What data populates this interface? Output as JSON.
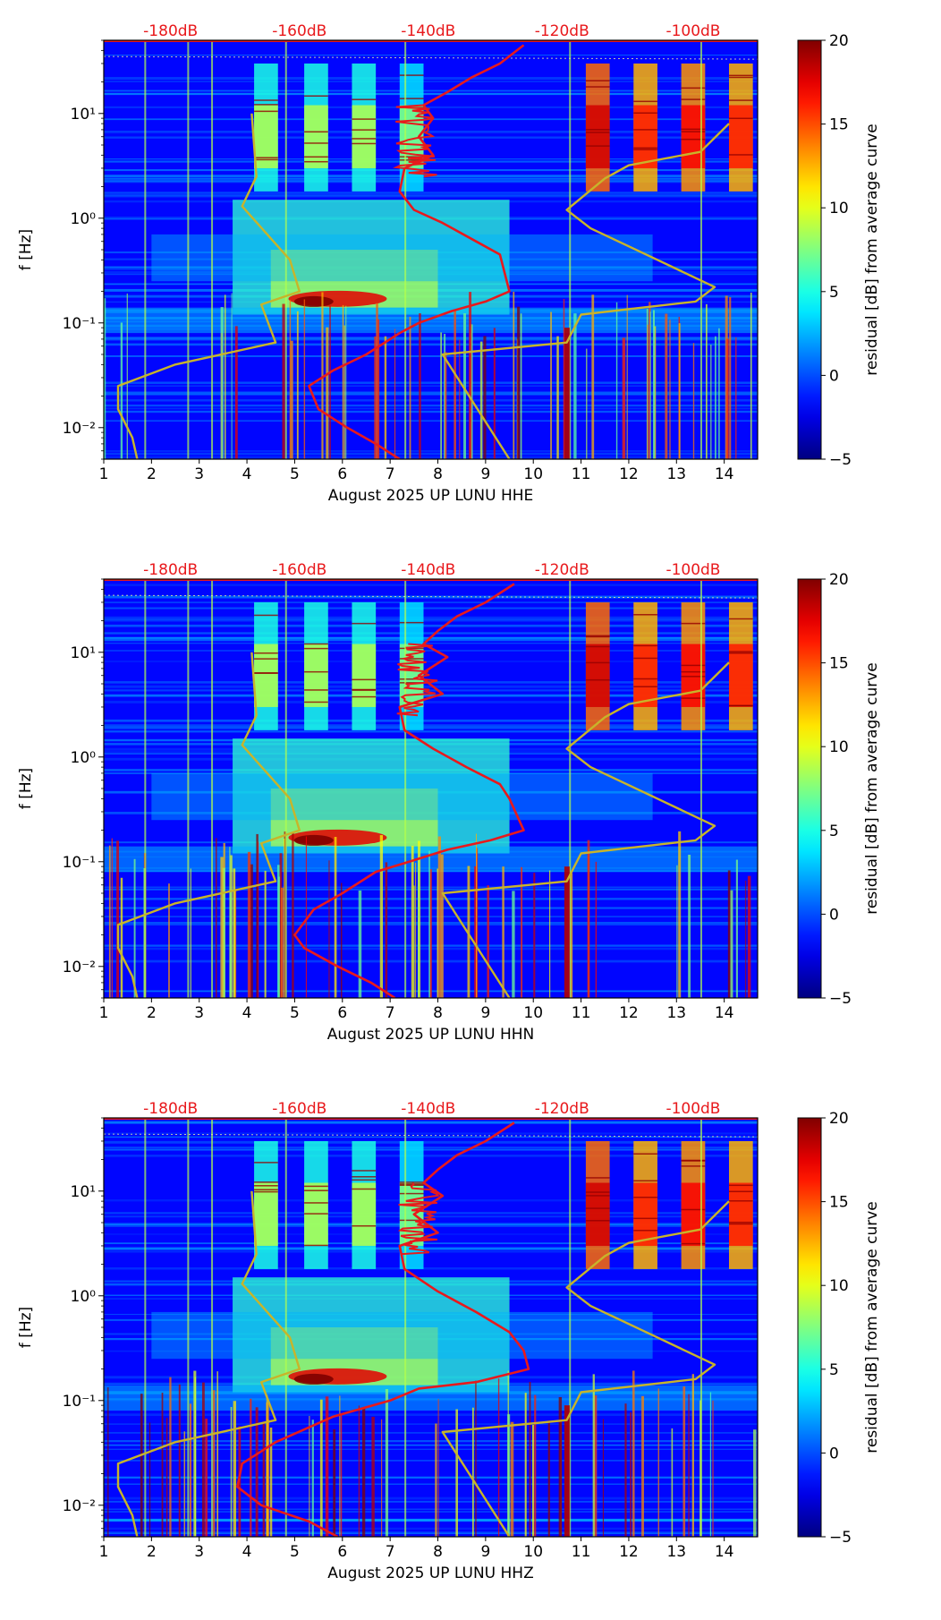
{
  "chart_data": [
    {
      "type": "heatmap",
      "title": "",
      "xlabel": "August 2025 UP LUNU  HHE",
      "ylabel": "f [Hz]",
      "xlim": [
        1,
        14.7
      ],
      "ylim": [
        0.005,
        50
      ],
      "yscale": "log",
      "xticks": [
        1,
        2,
        3,
        4,
        5,
        6,
        7,
        8,
        9,
        10,
        11,
        12,
        13,
        14
      ],
      "yticks": [
        {
          "value": 0.01,
          "label": "10⁻²"
        },
        {
          "value": 0.1,
          "label": "10⁻¹"
        },
        {
          "value": 1,
          "label": "10⁰"
        },
        {
          "value": 10,
          "label": "10¹"
        }
      ],
      "top_ticks": [
        {
          "x": 2.4,
          "label": "-180dB"
        },
        {
          "x": 5.1,
          "label": "-160dB"
        },
        {
          "x": 7.8,
          "label": "-140dB"
        },
        {
          "x": 10.6,
          "label": "-120dB"
        },
        {
          "x": 13.35,
          "label": "-100dB"
        }
      ],
      "colorbar": {
        "label": "residual [dB] from average curve",
        "min": -5,
        "max": 20,
        "ticks": [
          -5,
          0,
          5,
          10,
          15,
          20
        ],
        "colormap": "jet"
      },
      "series": [
        {
          "name": "average PSD curve",
          "color": "#e8191c",
          "x": [
            9.8,
            9.3,
            8.7,
            8.2,
            7.7,
            7.9,
            7.6,
            7.9,
            7.3,
            7.2,
            7.5,
            8.1,
            8.8,
            9.3,
            9.5,
            9.0,
            8.3,
            7.6,
            7.2,
            6.5,
            5.8,
            5.3,
            5.5,
            6.1,
            6.7,
            7.2
          ],
          "y": [
            45,
            30,
            22,
            16,
            12,
            9,
            6,
            4,
            3,
            1.8,
            1.2,
            0.9,
            0.6,
            0.45,
            0.2,
            0.16,
            0.13,
            0.1,
            0.08,
            0.05,
            0.035,
            0.025,
            0.015,
            0.01,
            0.007,
            0.005
          ]
        },
        {
          "name": "noise model low",
          "color": "#c8b42a",
          "x": [
            4.1,
            4.2,
            3.9,
            4.9,
            5.1,
            4.3,
            4.6,
            2.5,
            1.3,
            1.3,
            1.6,
            1.7
          ],
          "y": [
            10,
            2.5,
            1.3,
            0.4,
            0.2,
            0.15,
            0.065,
            0.04,
            0.025,
            0.015,
            0.008,
            0.005
          ]
        },
        {
          "name": "noise model high",
          "color": "#c8b42a",
          "x": [
            14.1,
            13.5,
            12.0,
            11.5,
            10.7,
            11.2,
            12.6,
            13.8,
            13.4,
            11.0,
            10.7,
            8.1,
            9.5
          ],
          "y": [
            8,
            4.3,
            3.2,
            2.4,
            1.2,
            0.8,
            0.4,
            0.22,
            0.16,
            0.12,
            0.065,
            0.05,
            0.005
          ]
        }
      ]
    },
    {
      "type": "heatmap",
      "title": "",
      "xlabel": "August 2025 UP LUNU  HHN",
      "ylabel": "f [Hz]",
      "xlim": [
        1,
        14.7
      ],
      "ylim": [
        0.005,
        50
      ],
      "yscale": "log",
      "xticks": [
        1,
        2,
        3,
        4,
        5,
        6,
        7,
        8,
        9,
        10,
        11,
        12,
        13,
        14
      ],
      "yticks": [
        {
          "value": 0.01,
          "label": "10⁻²"
        },
        {
          "value": 0.1,
          "label": "10⁻¹"
        },
        {
          "value": 1,
          "label": "10⁰"
        },
        {
          "value": 10,
          "label": "10¹"
        }
      ],
      "top_ticks": [
        {
          "x": 2.4,
          "label": "-180dB"
        },
        {
          "x": 5.1,
          "label": "-160dB"
        },
        {
          "x": 7.8,
          "label": "-140dB"
        },
        {
          "x": 10.6,
          "label": "-120dB"
        },
        {
          "x": 13.35,
          "label": "-100dB"
        }
      ],
      "colorbar": {
        "label": "residual [dB] from average curve",
        "min": -5,
        "max": 20,
        "ticks": [
          -5,
          0,
          5,
          10,
          15,
          20
        ],
        "colormap": "jet"
      },
      "series": [
        {
          "name": "average PSD curve",
          "color": "#e8191c",
          "x": [
            9.6,
            9.0,
            8.4,
            8.0,
            7.7,
            8.2,
            7.6,
            8.1,
            7.2,
            7.3,
            7.9,
            8.6,
            9.3,
            9.5,
            9.8,
            9.1,
            8.2,
            7.4,
            6.7,
            6.0,
            5.4,
            5.0,
            5.2,
            5.9,
            6.6,
            7.1
          ],
          "y": [
            45,
            30,
            22,
            16,
            12,
            9,
            6,
            4,
            3,
            1.8,
            1.2,
            0.8,
            0.55,
            0.4,
            0.2,
            0.16,
            0.13,
            0.1,
            0.08,
            0.05,
            0.035,
            0.02,
            0.015,
            0.01,
            0.007,
            0.005
          ]
        },
        {
          "name": "noise model low",
          "color": "#c8b42a",
          "x": [
            4.1,
            4.2,
            3.9,
            4.9,
            5.1,
            4.3,
            4.6,
            2.5,
            1.3,
            1.3,
            1.6,
            1.7
          ],
          "y": [
            10,
            2.5,
            1.3,
            0.4,
            0.2,
            0.15,
            0.065,
            0.04,
            0.025,
            0.015,
            0.008,
            0.005
          ]
        },
        {
          "name": "noise model high",
          "color": "#c8b42a",
          "x": [
            14.1,
            13.5,
            12.0,
            11.5,
            10.7,
            11.2,
            12.6,
            13.8,
            13.4,
            11.0,
            10.7,
            8.1,
            9.5
          ],
          "y": [
            8,
            4.3,
            3.2,
            2.4,
            1.2,
            0.8,
            0.4,
            0.22,
            0.16,
            0.12,
            0.065,
            0.05,
            0.005
          ]
        }
      ]
    },
    {
      "type": "heatmap",
      "title": "",
      "xlabel": "August 2025 UP LUNU  HHZ",
      "ylabel": "f [Hz]",
      "xlim": [
        1,
        14.7
      ],
      "ylim": [
        0.005,
        50
      ],
      "yscale": "log",
      "xticks": [
        1,
        2,
        3,
        4,
        5,
        6,
        7,
        8,
        9,
        10,
        11,
        12,
        13,
        14
      ],
      "yticks": [
        {
          "value": 0.01,
          "label": "10⁻²"
        },
        {
          "value": 0.1,
          "label": "10⁻¹"
        },
        {
          "value": 1,
          "label": "10⁰"
        },
        {
          "value": 10,
          "label": "10¹"
        }
      ],
      "top_ticks": [
        {
          "x": 2.4,
          "label": "-180dB"
        },
        {
          "x": 5.1,
          "label": "-160dB"
        },
        {
          "x": 7.8,
          "label": "-140dB"
        },
        {
          "x": 10.6,
          "label": "-120dB"
        },
        {
          "x": 13.35,
          "label": "-100dB"
        }
      ],
      "colorbar": {
        "label": "residual [dB] from average curve",
        "min": -5,
        "max": 20,
        "ticks": [
          -5,
          0,
          5,
          10,
          15,
          20
        ],
        "colormap": "jet"
      },
      "series": [
        {
          "name": "average PSD curve",
          "color": "#e8191c",
          "x": [
            9.6,
            9.0,
            8.4,
            8.0,
            7.7,
            8.1,
            7.5,
            8.0,
            7.2,
            7.3,
            8.0,
            8.8,
            9.5,
            9.8,
            9.9,
            8.8,
            7.6,
            7.0,
            5.8,
            4.6,
            3.9,
            3.8,
            4.3,
            5.3,
            5.9
          ],
          "y": [
            45,
            30,
            22,
            16,
            12,
            9,
            6,
            4,
            3,
            1.8,
            1.1,
            0.7,
            0.45,
            0.3,
            0.2,
            0.15,
            0.13,
            0.1,
            0.07,
            0.04,
            0.025,
            0.015,
            0.01,
            0.007,
            0.005
          ]
        },
        {
          "name": "noise model low",
          "color": "#c8b42a",
          "x": [
            4.1,
            4.2,
            3.9,
            4.9,
            5.1,
            4.3,
            4.6,
            2.5,
            1.3,
            1.3,
            1.6,
            1.7
          ],
          "y": [
            10,
            2.5,
            1.3,
            0.4,
            0.2,
            0.15,
            0.065,
            0.04,
            0.025,
            0.015,
            0.008,
            0.005
          ]
        },
        {
          "name": "noise model high",
          "color": "#c8b42a",
          "x": [
            14.1,
            13.5,
            12.0,
            11.5,
            10.7,
            11.2,
            12.6,
            13.8,
            13.4,
            11.0,
            10.7,
            8.1,
            9.5
          ],
          "y": [
            8,
            4.3,
            3.2,
            2.4,
            1.2,
            0.8,
            0.4,
            0.22,
            0.16,
            0.12,
            0.065,
            0.05,
            0.005
          ]
        }
      ]
    }
  ]
}
